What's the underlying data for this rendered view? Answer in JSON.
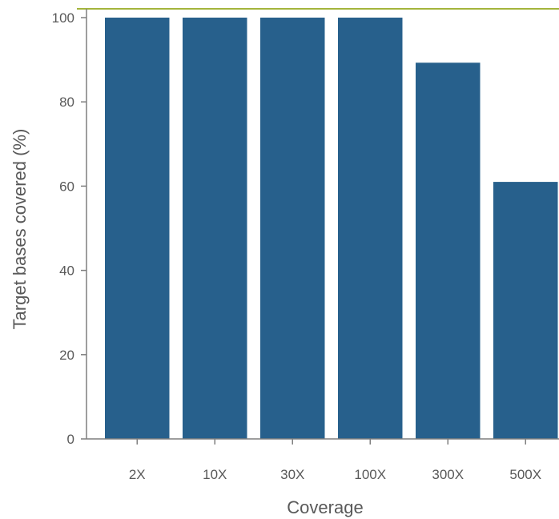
{
  "chart_data": {
    "type": "bar",
    "title": "",
    "xlabel": "Coverage",
    "ylabel": "Target bases covered (%)",
    "categories": [
      "2X",
      "10X",
      "30X",
      "100X",
      "300X",
      "500X"
    ],
    "values": [
      100,
      100,
      100,
      100,
      89.3,
      61.0
    ],
    "ylim": [
      0,
      100
    ],
    "yticks": [
      0,
      20,
      40,
      60,
      80,
      100
    ],
    "grid": false,
    "legend": "none",
    "colors": {
      "bar": "#27608c",
      "axis": "#7f7f7f",
      "reference_line": "#a4b53c",
      "text": "#595959"
    }
  }
}
